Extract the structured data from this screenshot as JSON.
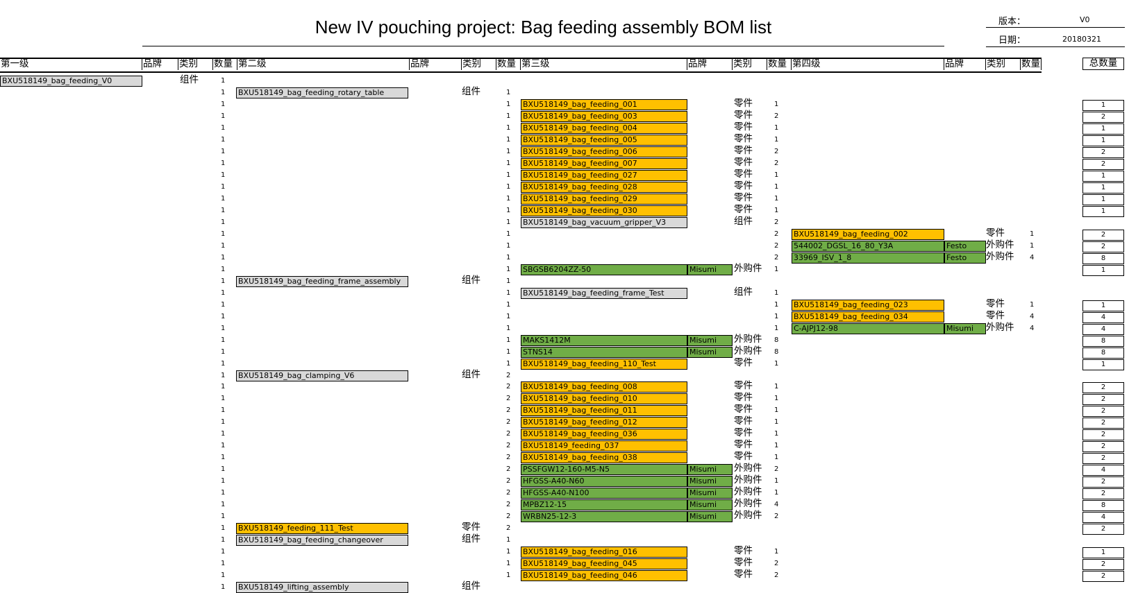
{
  "document": {
    "title": "New IV pouching project: Bag feeding assembly BOM list",
    "version_label": "版本：",
    "version_value": "V0",
    "date_label": "日期：",
    "date_value": "20180321"
  },
  "headers": [
    "第一级",
    "品牌",
    "类别",
    "数量",
    "第二级",
    "品牌",
    "类别",
    "数量",
    "第三级",
    "品牌",
    "类别",
    "数量",
    "第四级",
    "品牌",
    "类别",
    "数量",
    "总数量"
  ],
  "rows": [
    {
      "q1": "1",
      "l1": "BXU518149_bag_feeding_V0",
      "l1_color": "gray",
      "c1": "组件"
    },
    {
      "q1": "1",
      "l2": "BXU518149_bag_feeding_rotary_table",
      "l2_color": "gray",
      "c2": "组件",
      "q2": "1"
    },
    {
      "q1": "1",
      "q2": "1",
      "l3": "BXU518149_bag_feeding_001",
      "l3_color": "orange",
      "c3": "零件",
      "q3": "1",
      "total": "1"
    },
    {
      "q1": "1",
      "q2": "1",
      "l3": "BXU518149_bag_feeding_003",
      "l3_color": "orange",
      "c3": "零件",
      "q3": "2",
      "total": "2"
    },
    {
      "q1": "1",
      "q2": "1",
      "l3": "BXU518149_bag_feeding_004",
      "l3_color": "orange",
      "c3": "零件",
      "q3": "1",
      "total": "1"
    },
    {
      "q1": "1",
      "q2": "1",
      "l3": "BXU518149_bag_feeding_005",
      "l3_color": "orange",
      "c3": "零件",
      "q3": "1",
      "total": "1"
    },
    {
      "q1": "1",
      "q2": "1",
      "l3": "BXU518149_bag_feeding_006",
      "l3_color": "orange",
      "c3": "零件",
      "q3": "2",
      "total": "2"
    },
    {
      "q1": "1",
      "q2": "1",
      "l3": "BXU518149_bag_feeding_007",
      "l3_color": "orange",
      "c3": "零件",
      "q3": "2",
      "total": "2"
    },
    {
      "q1": "1",
      "q2": "1",
      "l3": "BXU518149_bag_feeding_027",
      "l3_color": "orange",
      "c3": "零件",
      "q3": "1",
      "total": "1"
    },
    {
      "q1": "1",
      "q2": "1",
      "l3": "BXU518149_bag_feeding_028",
      "l3_color": "orange",
      "c3": "零件",
      "q3": "1",
      "total": "1"
    },
    {
      "q1": "1",
      "q2": "1",
      "l3": "BXU518149_bag_feeding_029",
      "l3_color": "orange",
      "c3": "零件",
      "q3": "1",
      "total": "1"
    },
    {
      "q1": "1",
      "q2": "1",
      "l3": "BXU518149_bag_feeding_030",
      "l3_color": "orange",
      "c3": "零件",
      "q3": "1",
      "total": "1"
    },
    {
      "q1": "1",
      "q2": "1",
      "l3": "BXU518149_bag_vacuum_gripper_V3",
      "l3_color": "gray",
      "c3": "组件",
      "q3": "2"
    },
    {
      "q1": "1",
      "q2": "1",
      "q3": "2",
      "l4": "BXU518149_bag_feeding_002",
      "l4_color": "orange",
      "c4": "零件",
      "q4": "1",
      "total": "2"
    },
    {
      "q1": "1",
      "q2": "1",
      "q3": "2",
      "l4": "544002_DGSL_16_80_Y3A",
      "l4_color": "green",
      "b4": "Festo",
      "c4": "外购件",
      "q4": "1",
      "total": "2"
    },
    {
      "q1": "1",
      "q2": "1",
      "q3": "2",
      "l4": "33969_ISV_1_8",
      "l4_color": "green",
      "b4": "Festo",
      "c4": "外购件",
      "q4": "4",
      "total": "8"
    },
    {
      "q1": "1",
      "q2": "1",
      "l3": "SBGSB6204ZZ-50",
      "l3_color": "green",
      "b3": "Misumi",
      "c3": "外购件",
      "q3": "1",
      "total": "1"
    },
    {
      "q1": "1",
      "l2": "BXU518149_bag_feeding_frame_assembly",
      "l2_color": "gray",
      "c2": "组件",
      "q2": "1"
    },
    {
      "q1": "1",
      "q2": "1",
      "l3": "BXU518149_bag_feeding_frame_Test",
      "l3_color": "gray",
      "c3": "组件",
      "q3": "1"
    },
    {
      "q1": "1",
      "q2": "1",
      "q3": "1",
      "l4": "BXU518149_bag_feeding_023",
      "l4_color": "orange",
      "c4": "零件",
      "q4": "1",
      "total": "1"
    },
    {
      "q1": "1",
      "q2": "1",
      "q3": "1",
      "l4": "BXU518149_bag_feeding_034",
      "l4_color": "orange",
      "c4": "零件",
      "q4": "4",
      "total": "4"
    },
    {
      "q1": "1",
      "q2": "1",
      "q3": "1",
      "l4": "C-AJPJ12-98",
      "l4_color": "green",
      "b4": "Misumi",
      "c4": "外购件",
      "q4": "4",
      "total": "4"
    },
    {
      "q1": "1",
      "q2": "1",
      "l3": "MAKS1412M",
      "l3_color": "green",
      "b3": "Misumi",
      "c3": "外购件",
      "q3": "8",
      "total": "8"
    },
    {
      "q1": "1",
      "q2": "1",
      "l3": "STNS14",
      "l3_color": "green",
      "b3": "Misumi",
      "c3": "外购件",
      "q3": "8",
      "total": "8"
    },
    {
      "q1": "1",
      "q2": "1",
      "l3": "BXU518149_bag_feeding_110_Test",
      "l3_color": "orange",
      "c3": "零件",
      "q3": "1",
      "total": "1"
    },
    {
      "q1": "1",
      "l2": "BXU518149_bag_clamping_V6",
      "l2_color": "gray",
      "c2": "组件",
      "q2": "2"
    },
    {
      "q1": "1",
      "q2": "2",
      "l3": "BXU518149_bag_feeding_008",
      "l3_color": "orange",
      "c3": "零件",
      "q3": "1",
      "total": "2"
    },
    {
      "q1": "1",
      "q2": "2",
      "l3": "BXU518149_bag_feeding_010",
      "l3_color": "orange",
      "c3": "零件",
      "q3": "1",
      "total": "2"
    },
    {
      "q1": "1",
      "q2": "2",
      "l3": "BXU518149_bag_feeding_011",
      "l3_color": "orange",
      "c3": "零件",
      "q3": "1",
      "total": "2"
    },
    {
      "q1": "1",
      "q2": "2",
      "l3": "BXU518149_bag_feeding_012",
      "l3_color": "orange",
      "c3": "零件",
      "q3": "1",
      "total": "2"
    },
    {
      "q1": "1",
      "q2": "2",
      "l3": "BXU518149_bag_feeding_036",
      "l3_color": "orange",
      "c3": "零件",
      "q3": "1",
      "total": "2"
    },
    {
      "q1": "1",
      "q2": "2",
      "l3": "BXU518149_feeding_037",
      "l3_color": "orange",
      "c3": "零件",
      "q3": "1",
      "total": "2"
    },
    {
      "q1": "1",
      "q2": "2",
      "l3": "BXU518149_bag_feeding_038",
      "l3_color": "orange",
      "c3": "零件",
      "q3": "1",
      "total": "2"
    },
    {
      "q1": "1",
      "q2": "2",
      "l3": "PSSFGW12-160-M5-N5",
      "l3_color": "green",
      "b3": "Misumi",
      "c3": "外购件",
      "q3": "2",
      "total": "4"
    },
    {
      "q1": "1",
      "q2": "2",
      "l3": "HFGSS-A40-N60",
      "l3_color": "green",
      "b3": "Misumi",
      "c3": "外购件",
      "q3": "1",
      "total": "2"
    },
    {
      "q1": "1",
      "q2": "2",
      "l3": "HFGSS-A40-N100",
      "l3_color": "green",
      "b3": "Misumi",
      "c3": "外购件",
      "q3": "1",
      "total": "2"
    },
    {
      "q1": "1",
      "q2": "2",
      "l3": "MPBZ12-15",
      "l3_color": "green",
      "b3": "Misumi",
      "c3": "外购件",
      "q3": "4",
      "total": "8"
    },
    {
      "q1": "1",
      "q2": "2",
      "l3": "WRBN25-12-3",
      "l3_color": "green",
      "b3": "Misumi",
      "c3": "外购件",
      "q3": "2",
      "total": "4"
    },
    {
      "q1": "1",
      "l2": "BXU518149_feeding_111_Test",
      "l2_color": "orange",
      "c2": "零件",
      "q2": "2",
      "total": "2"
    },
    {
      "q1": "1",
      "l2": "BXU518149_bag_feeding_changeover",
      "l2_color": "gray",
      "c2": "组件",
      "q2": "1"
    },
    {
      "q1": "1",
      "q2": "1",
      "l3": "BXU518149_bag_feeding_016",
      "l3_color": "orange",
      "c3": "零件",
      "q3": "1",
      "total": "1"
    },
    {
      "q1": "1",
      "q2": "1",
      "l3": "BXU518149_bag_feeding_045",
      "l3_color": "orange",
      "c3": "零件",
      "q3": "2",
      "total": "2"
    },
    {
      "q1": "1",
      "q2": "1",
      "l3": "BXU518149_bag_feeding_046",
      "l3_color": "orange",
      "c3": "零件",
      "q3": "2",
      "total": "2"
    },
    {
      "q1": "1",
      "l2": "BXU518149_lifting_assembly",
      "l2_color": "gray",
      "c2": "组件"
    }
  ]
}
